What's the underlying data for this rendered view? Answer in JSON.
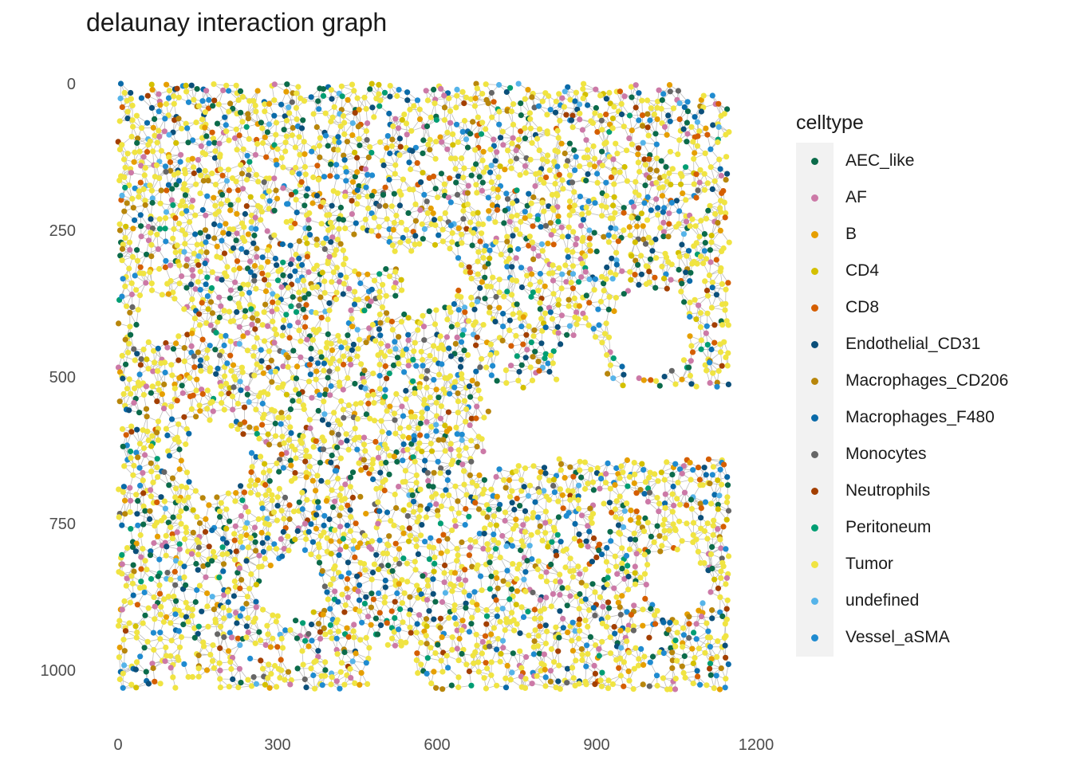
{
  "chart_data": {
    "type": "scatter",
    "title": "delaunay interaction graph",
    "xlabel": "",
    "ylabel": "",
    "xlim": [
      0,
      1200
    ],
    "ylim": [
      0,
      1000
    ],
    "y_reversed": true,
    "x_ticks": [
      "0",
      "300",
      "600",
      "900",
      "1200"
    ],
    "y_ticks": [
      "0",
      "250",
      "500",
      "750",
      "1000"
    ],
    "grid": false,
    "edges_color": "#bdbdbd",
    "legend": {
      "title": "celltype",
      "placement": "right",
      "entries": [
        {
          "name": "AEC_like",
          "color": "#0b6b4a"
        },
        {
          "name": "AF",
          "color": "#cc79a7"
        },
        {
          "name": "B",
          "color": "#e69f00"
        },
        {
          "name": "CD4",
          "color": "#d4c000"
        },
        {
          "name": "CD8",
          "color": "#d55e00"
        },
        {
          "name": "Endothelial_CD31",
          "color": "#0b4f7a"
        },
        {
          "name": "Macrophages_CD206",
          "color": "#b8860b"
        },
        {
          "name": "Macrophages_F480",
          "color": "#0a6aa8"
        },
        {
          "name": "Monocytes",
          "color": "#666666"
        },
        {
          "name": "Neutrophils",
          "color": "#a33f00"
        },
        {
          "name": "Peritoneum",
          "color": "#009e73"
        },
        {
          "name": "Tumor",
          "color": "#f0e442"
        },
        {
          "name": "undefined",
          "color": "#56b4e9"
        },
        {
          "name": "Vessel_aSMA",
          "color": "#1f8bd0"
        }
      ]
    },
    "x_extent": [
      0,
      1150
    ],
    "y_extent": [
      0,
      1035
    ],
    "empty_regions": [
      {
        "x": 590,
        "y": 330,
        "r": 55
      },
      {
        "x": 1000,
        "y": 425,
        "r": 75
      },
      {
        "x": 870,
        "y": 480,
        "r": 50
      },
      {
        "x": 190,
        "y": 640,
        "r": 60
      },
      {
        "x": 330,
        "y": 860,
        "r": 55
      },
      {
        "x": 1050,
        "y": 850,
        "r": 55
      },
      {
        "x": 470,
        "y": 290,
        "r": 35
      },
      {
        "x": 80,
        "y": 400,
        "r": 40
      }
    ]
  }
}
